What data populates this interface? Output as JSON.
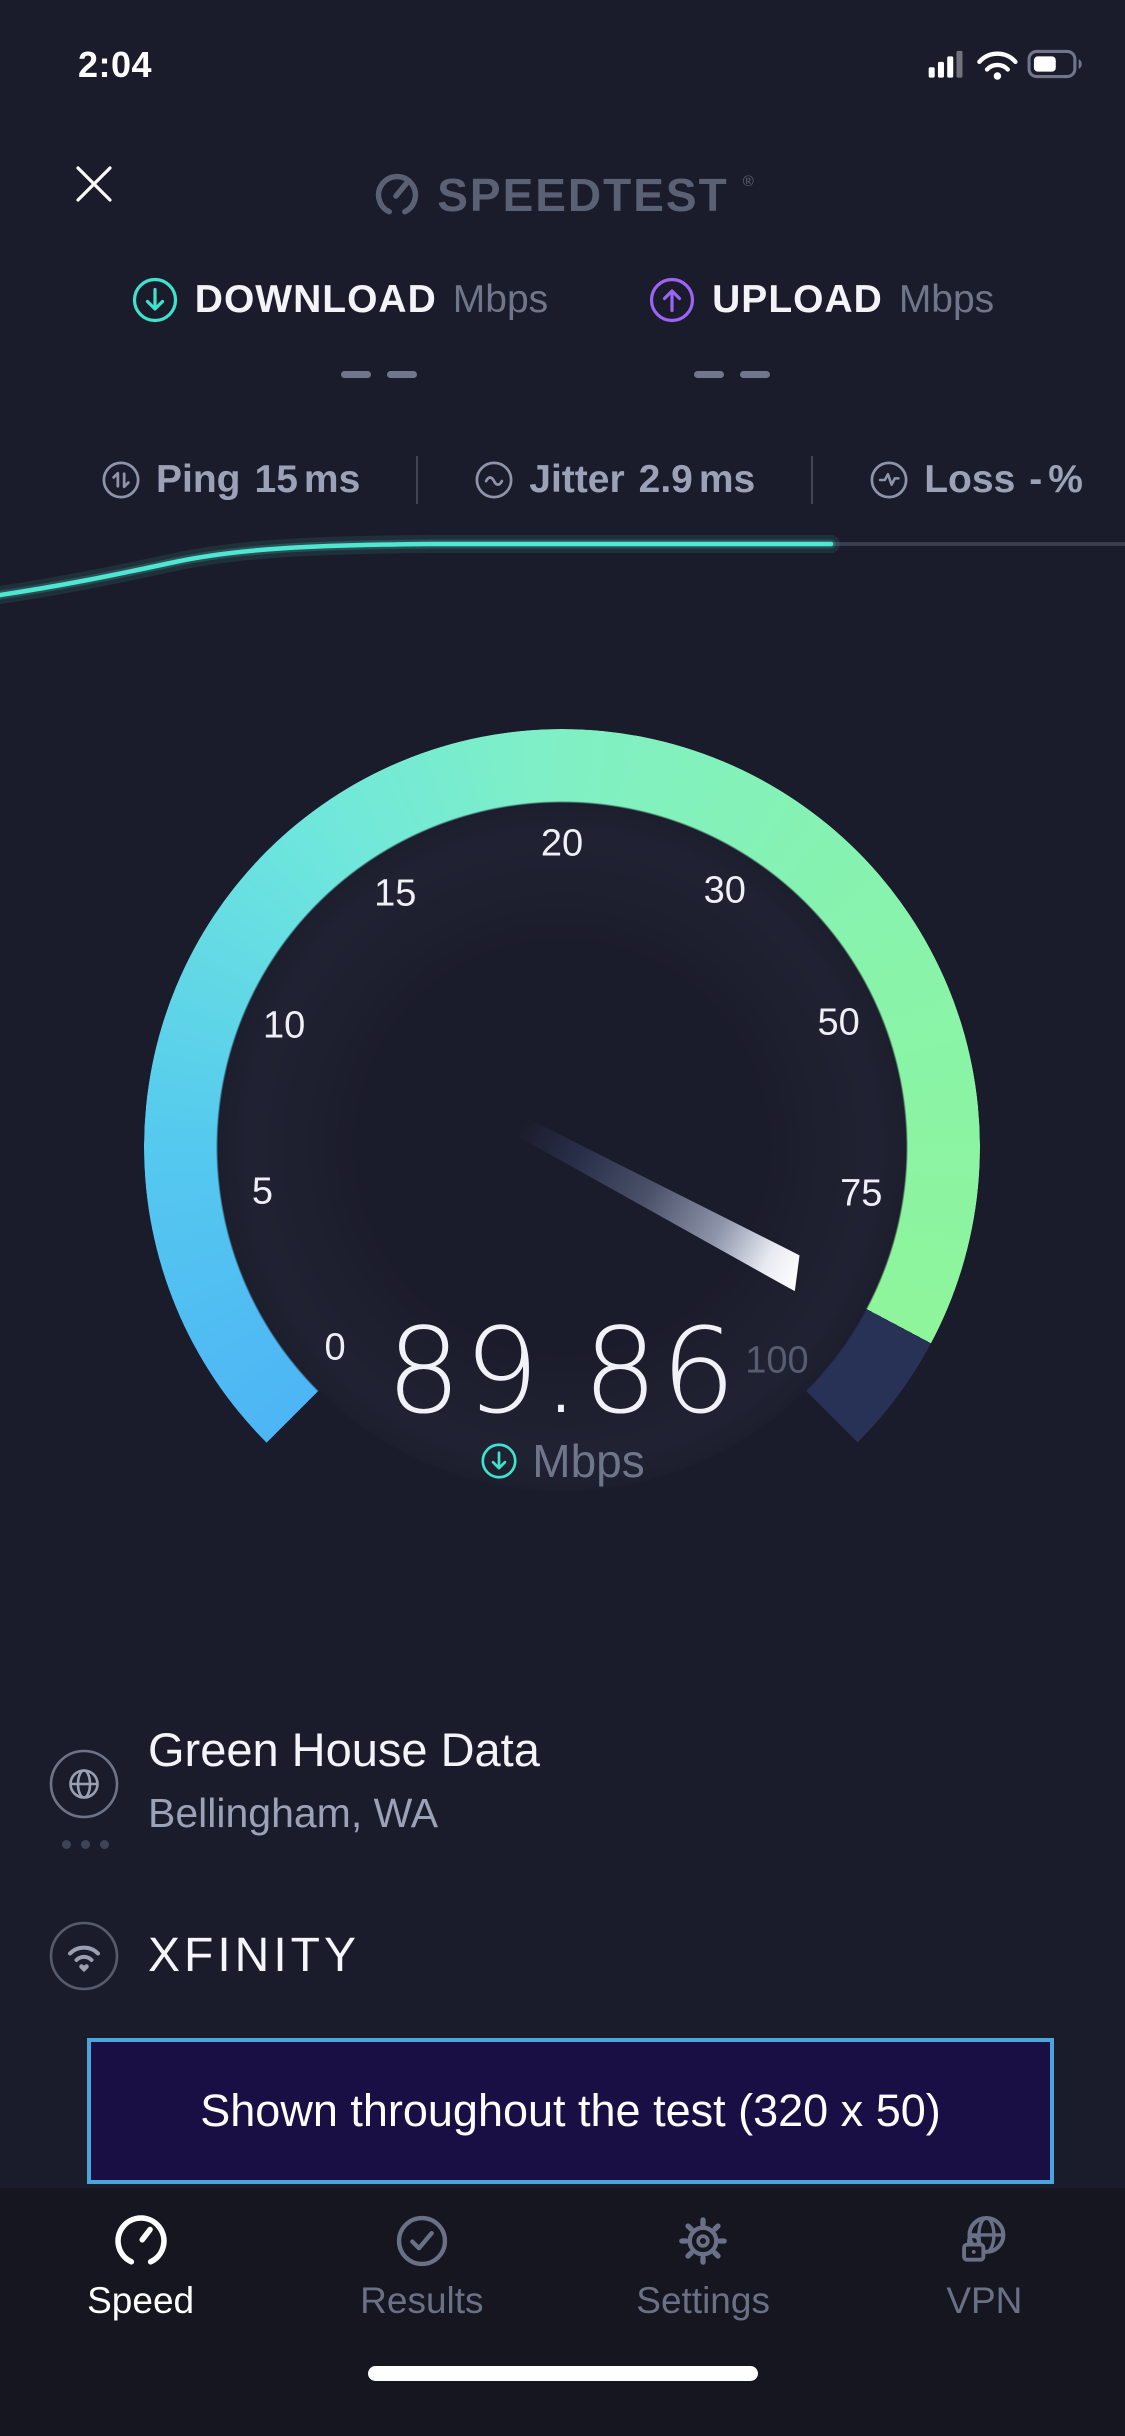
{
  "colors": {
    "bg": "#1b1c2b",
    "tabbar_bg": "#15161f",
    "accent_teal": "#3fe3cd",
    "accent_purple": "#9c64f6",
    "arc_blue": "#4db5f5",
    "arc_mint": "#80f0c4",
    "arc_green": "#8ef59b",
    "arc_remainder": "#283156",
    "line_teal": "#4fe6d2",
    "line_track": "#383d50",
    "logo_gray": "#5b6175",
    "text_gray": "#9ba1b7",
    "text_dim": "#70768a",
    "divider": "#3f4456",
    "dash": "#70768c",
    "banner_bg": "#190f45",
    "banner_border": "#4aa5da"
  },
  "status_bar": {
    "time": "2:04"
  },
  "header": {
    "logo_text": "SPEEDTEST",
    "trademark": "®"
  },
  "metrics": {
    "download": {
      "label": "DOWNLOAD",
      "unit": "Mbps",
      "value_placeholder": "– –"
    },
    "upload": {
      "label": "UPLOAD",
      "unit": "Mbps",
      "value_placeholder": "– –"
    }
  },
  "stats": [
    {
      "label": "Ping",
      "value": "15",
      "unit": "ms"
    },
    {
      "label": "Jitter",
      "value": "2.9",
      "unit": "ms"
    },
    {
      "label": "Loss",
      "value": "-",
      "unit": "%"
    }
  ],
  "gauge": {
    "value": "89.86",
    "unit": "Mbps",
    "needle_angle_deg": 118,
    "scale_start_deg": -135,
    "ticks": [
      {
        "label": "0",
        "angle": -131.5,
        "dim": false
      },
      {
        "label": "5",
        "angle": -98.6,
        "dim": false
      },
      {
        "label": "10",
        "angle": -66.5,
        "dim": false
      },
      {
        "label": "15",
        "angle": -33.4,
        "dim": false
      },
      {
        "label": "20",
        "angle": 0,
        "dim": false
      },
      {
        "label": "30",
        "angle": 32.5,
        "dim": false
      },
      {
        "label": "50",
        "angle": 65.9,
        "dim": false
      },
      {
        "label": "75",
        "angle": 99,
        "dim": false
      },
      {
        "label": "100",
        "angle": 134.8,
        "dim": true
      }
    ]
  },
  "server": {
    "name": "Green House Data",
    "location": "Bellingham, WA"
  },
  "isp": {
    "name": "XFINITY"
  },
  "ad_banner": {
    "text": "Shown throughout the test (320 x 50)"
  },
  "tab_bar": {
    "items": [
      {
        "label": "Speed",
        "active": true
      },
      {
        "label": "Results",
        "active": false
      },
      {
        "label": "Settings",
        "active": false
      },
      {
        "label": "VPN",
        "active": false
      }
    ]
  }
}
